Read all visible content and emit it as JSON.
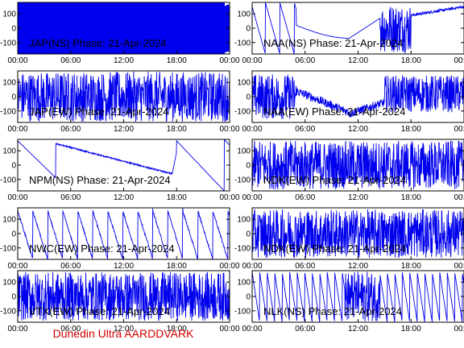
{
  "colors": {
    "trace": "#0000ee",
    "frame": "#000000",
    "footer": "#d00000",
    "background": "#ffffff"
  },
  "footer": "Dunedin Ultra AARDDVARK",
  "chart_data": [
    {
      "type": "line",
      "title": "JAP(NS) Phase: 21-Apr-2024",
      "ylim": [
        -180,
        180
      ],
      "yticks": [
        100,
        0,
        -100
      ],
      "xlim": [
        0,
        24
      ],
      "xticks": [
        "00:00",
        "06:00",
        "12:00",
        "18:00",
        "00:00"
      ],
      "pattern": "saturated"
    },
    {
      "type": "line",
      "title": "NAA(NS) Phase: 21-Apr-2024",
      "ylim": [
        -180,
        180
      ],
      "yticks": [
        100,
        0,
        -100
      ],
      "xlim": [
        0,
        24
      ],
      "xticks": [
        "00:00",
        "06:00",
        "12:00",
        "18:00",
        "00:00"
      ],
      "pattern": "naa_ns"
    },
    {
      "type": "line",
      "title": "JAP(EW) Phase: 21-Apr-2024",
      "ylim": [
        -180,
        180
      ],
      "yticks": [
        100,
        0,
        -100
      ],
      "xlim": [
        0,
        24
      ],
      "xticks": [
        "00:00",
        "06:00",
        "12:00",
        "18:00",
        "00:00"
      ],
      "pattern": "noisy_dense"
    },
    {
      "type": "line",
      "title": "NAA(EW) Phase: 21-Apr-2024",
      "ylim": [
        -180,
        180
      ],
      "yticks": [
        100,
        0,
        -100
      ],
      "xlim": [
        0,
        24
      ],
      "xticks": [
        "00:00",
        "06:00",
        "12:00",
        "18:00",
        "00:00"
      ],
      "pattern": "naa_ew"
    },
    {
      "type": "line",
      "title": "NPM(NS) Phase: 21-Apr-2024",
      "ylim": [
        -180,
        180
      ],
      "yticks": [
        100,
        0,
        -100
      ],
      "xlim": [
        0,
        24
      ],
      "xticks": [
        "00:00",
        "06:00",
        "12:00",
        "18:00",
        "00:00"
      ],
      "pattern": "npm_ns"
    },
    {
      "type": "line",
      "title": "NDK(EW) Phase: 21-Apr-2024",
      "ylim": [
        -180,
        180
      ],
      "yticks": [
        100,
        0,
        -100
      ],
      "xlim": [
        0,
        24
      ],
      "xticks": [
        "00:00",
        "06:00",
        "12:00",
        "18:00",
        "00:00"
      ],
      "pattern": "noisy"
    },
    {
      "type": "line",
      "title": "NWC(EW) Phase: 21-Apr-2024",
      "ylim": [
        -180,
        180
      ],
      "yticks": [
        100,
        0,
        -100
      ],
      "xlim": [
        0,
        24
      ],
      "xticks": [
        "00:00",
        "06:00",
        "12:00",
        "18:00",
        "00:00"
      ],
      "pattern": "nwc_ew"
    },
    {
      "type": "line",
      "title": "NDK(EW) Phase: 21-Apr-2024",
      "ylim": [
        -180,
        180
      ],
      "yticks": [
        100,
        0,
        -100
      ],
      "xlim": [
        0,
        24
      ],
      "xticks": [
        "00:00",
        "06:00",
        "12:00",
        "18:00",
        "00:00"
      ],
      "pattern": "noisy"
    },
    {
      "type": "line",
      "title": "VTX(EW) Phase: 21-Apr-2024",
      "ylim": [
        -180,
        180
      ],
      "yticks": [
        100,
        0,
        -100
      ],
      "xlim": [
        0,
        24
      ],
      "xticks": [
        "00:00",
        "06:00",
        "12:00",
        "18:00",
        "00:00"
      ],
      "pattern": "noisy"
    },
    {
      "type": "line",
      "title": "NLK(NS) Phase: 21-Apr-2024",
      "ylim": [
        -180,
        180
      ],
      "yticks": [
        100,
        0,
        -100
      ],
      "xlim": [
        0,
        24
      ],
      "xticks": [
        "00:00",
        "06:00",
        "12:00",
        "18:00",
        "00:00"
      ],
      "pattern": "nlk_ns"
    }
  ]
}
